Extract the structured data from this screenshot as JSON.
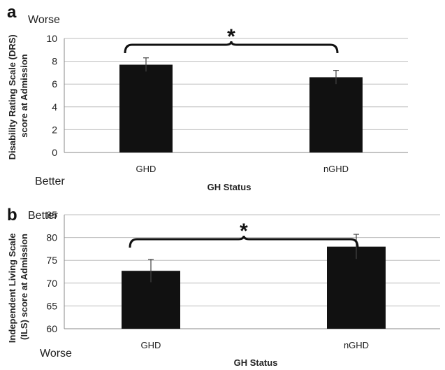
{
  "chart_data": [
    {
      "panel": "a",
      "type": "bar",
      "categories": [
        "GHD",
        "nGHD"
      ],
      "values": [
        7.7,
        6.6
      ],
      "errors": [
        0.6,
        0.6
      ],
      "xlabel": "GH Status",
      "ylabel": [
        "Disability Rating Scale (DRS)",
        "score at Admission"
      ],
      "ylim": [
        0,
        10
      ],
      "yticks": [
        0,
        2,
        4,
        6,
        8,
        10
      ],
      "grid": true,
      "direction_top": "Worse",
      "direction_bottom": "Better",
      "significance": "*",
      "bar_color": "#111111"
    },
    {
      "panel": "b",
      "type": "bar",
      "categories": [
        "GHD",
        "nGHD"
      ],
      "values": [
        72.7,
        78.0
      ],
      "errors": [
        2.5,
        2.7
      ],
      "xlabel": "GH Status",
      "ylabel": [
        "Independent Living Scale",
        "(ILS) score at Admission"
      ],
      "ylim": [
        60,
        85
      ],
      "yticks": [
        60,
        65,
        70,
        75,
        80,
        85
      ],
      "grid": true,
      "direction_top": "Better",
      "direction_bottom": "Worse",
      "significance": "*",
      "bar_color": "#111111"
    }
  ]
}
